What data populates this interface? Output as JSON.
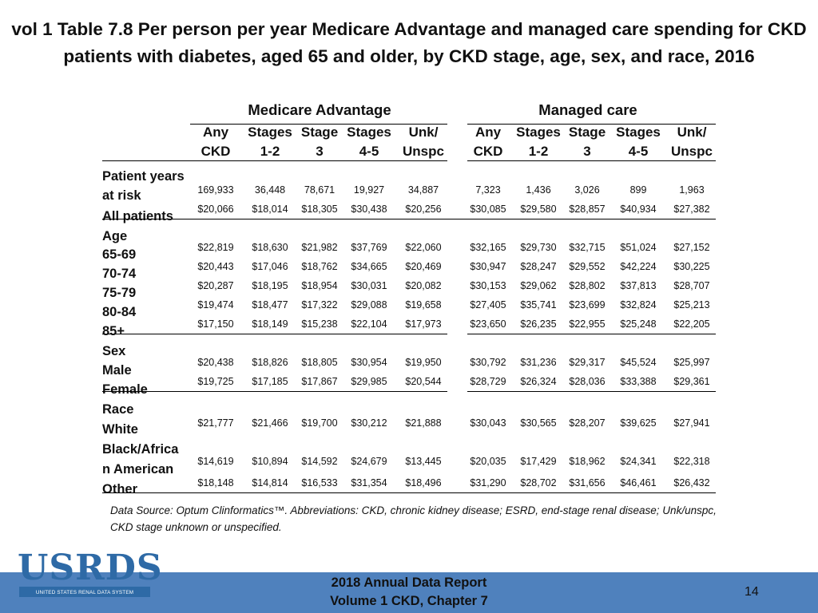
{
  "title": "vol 1 Table 7.8 Per person per year Medicare Advantage and managed care spending for CKD patients with diabetes, aged 65 and older, by CKD stage, age, sex, and race, 2016",
  "groups": [
    "Medicare Advantage",
    "Managed care"
  ],
  "columns": [
    {
      "line1": "Any",
      "line2": "CKD"
    },
    {
      "line1": "Stages",
      "line2": "1-2"
    },
    {
      "line1": "Stage",
      "line2": "3"
    },
    {
      "line1": "Stages",
      "line2": "4-5"
    },
    {
      "line1": "Unk/",
      "line2": "Unspc"
    },
    {
      "line1": "Any",
      "line2": "CKD"
    },
    {
      "line1": "Stages",
      "line2": "1-2"
    },
    {
      "line1": "Stage",
      "line2": "3"
    },
    {
      "line1": "Stages",
      "line2": "4-5"
    },
    {
      "line1": "Unk/",
      "line2": "Unspc"
    }
  ],
  "rows": [
    {
      "label": "Patient years",
      "label2": "at risk",
      "values": [
        "169,933",
        "36,448",
        "78,671",
        "19,927",
        "34,887",
        "7,323",
        "1,436",
        "3,026",
        "899",
        "1,963"
      ]
    },
    {
      "label": "All patients",
      "values": [
        "$20,066",
        "$18,014",
        "$18,305",
        "$30,438",
        "$20,256",
        "$30,085",
        "$29,580",
        "$28,857",
        "$40,934",
        "$27,382"
      ]
    },
    {
      "label": "Age",
      "values": []
    },
    {
      "label": "65-69",
      "values": [
        "$22,819",
        "$18,630",
        "$21,982",
        "$37,769",
        "$22,060",
        "$32,165",
        "$29,730",
        "$32,715",
        "$51,024",
        "$27,152"
      ]
    },
    {
      "label": "70-74",
      "values": [
        "$20,443",
        "$17,046",
        "$18,762",
        "$34,665",
        "$20,469",
        "$30,947",
        "$28,247",
        "$29,552",
        "$42,224",
        "$30,225"
      ]
    },
    {
      "label": "75-79",
      "values": [
        "$20,287",
        "$18,195",
        "$18,954",
        "$30,031",
        "$20,082",
        "$30,153",
        "$29,062",
        "$28,802",
        "$37,813",
        "$28,707"
      ]
    },
    {
      "label": "80-84",
      "values": [
        "$19,474",
        "$18,477",
        "$17,322",
        "$29,088",
        "$19,658",
        "$27,405",
        "$35,741",
        "$23,699",
        "$32,824",
        "$25,213"
      ]
    },
    {
      "label": "85+",
      "values": [
        "$17,150",
        "$18,149",
        "$15,238",
        "$22,104",
        "$17,973",
        "$23,650",
        "$26,235",
        "$22,955",
        "$25,248",
        "$22,205"
      ]
    },
    {
      "label": "Sex",
      "values": []
    },
    {
      "label": "Male",
      "values": [
        "$20,438",
        "$18,826",
        "$18,805",
        "$30,954",
        "$19,950",
        "$30,792",
        "$31,236",
        "$29,317",
        "$45,524",
        "$25,997"
      ]
    },
    {
      "label": "Female",
      "values": [
        "$19,725",
        "$17,185",
        "$17,867",
        "$29,985",
        "$20,544",
        "$28,729",
        "$26,324",
        "$28,036",
        "$33,388",
        "$29,361"
      ]
    },
    {
      "label": "Race",
      "values": []
    },
    {
      "label": "White",
      "values": [
        "$21,777",
        "$21,466",
        "$19,700",
        "$30,212",
        "$21,888",
        "$30,043",
        "$30,565",
        "$28,207",
        "$39,625",
        "$27,941"
      ]
    },
    {
      "label": "Black/Africa",
      "label2": "n American",
      "values": [
        "$14,619",
        "$10,894",
        "$14,592",
        "$24,679",
        "$13,445",
        "$20,035",
        "$17,429",
        "$18,962",
        "$24,341",
        "$22,318"
      ]
    },
    {
      "label": "Other",
      "values": [
        "$18,148",
        "$14,814",
        "$16,533",
        "$31,354",
        "$18,496",
        "$31,290",
        "$28,702",
        "$31,656",
        "$46,461",
        "$26,432"
      ]
    }
  ],
  "source": "Data Source: Optum Clinformatics™. Abbreviations: CKD, chronic kidney disease; ESRD, end-stage renal disease; Unk/unspc, CKD stage unknown or unspecified.",
  "logo": {
    "word": "USRDS",
    "subtitle": "UNITED STATES RENAL DATA SYSTEM"
  },
  "footer": {
    "line1": "2018 Annual Data Report",
    "line2": "Volume 1 CKD, Chapter 7",
    "page": "14"
  },
  "colors": {
    "footer_bar": "#4f81bd",
    "logo": "#2e6aa6",
    "text": "#111111"
  }
}
